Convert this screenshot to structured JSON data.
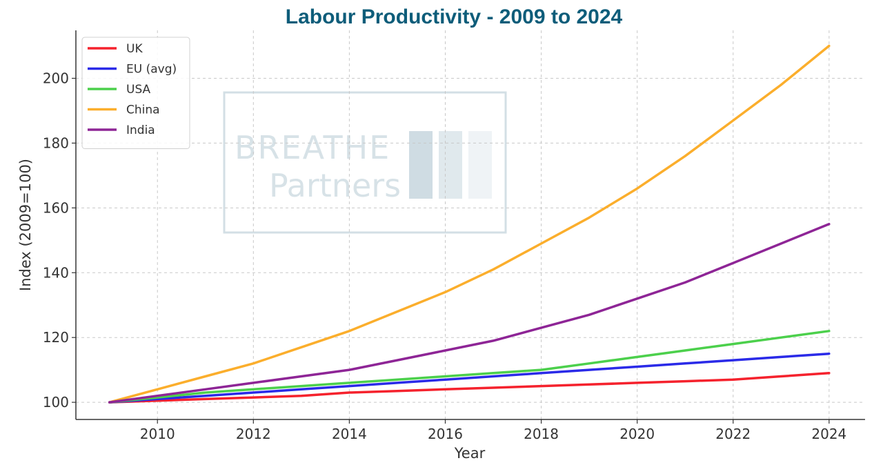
{
  "chart_data": {
    "type": "line",
    "title": "Labour Productivity - 2009 to 2024",
    "xlabel": "Year",
    "ylabel": "Index (2009=100)",
    "x": [
      2009,
      2010,
      2011,
      2012,
      2013,
      2014,
      2015,
      2016,
      2017,
      2018,
      2019,
      2020,
      2021,
      2022,
      2023,
      2024
    ],
    "xlim": [
      2008.3,
      2024.75
    ],
    "ylim": [
      94.7,
      214.8
    ],
    "xticks": [
      2010,
      2012,
      2014,
      2016,
      2018,
      2020,
      2022,
      2024
    ],
    "yticks": [
      100,
      120,
      140,
      160,
      180,
      200
    ],
    "grid": true,
    "legend_position": "top-left",
    "series": [
      {
        "name": "UK",
        "color": "#f5222d",
        "values": [
          100,
          100.5,
          101,
          101.5,
          102,
          103,
          103.5,
          104,
          104.5,
          105,
          105.5,
          106,
          106.5,
          107,
          108,
          109
        ]
      },
      {
        "name": "EU (avg)",
        "color": "#2a2ae8",
        "values": [
          100,
          101,
          102,
          103,
          104,
          105,
          106,
          107,
          108,
          109,
          110,
          111,
          112,
          113,
          114,
          115
        ]
      },
      {
        "name": "USA",
        "color": "#4cd04c",
        "values": [
          100,
          101.5,
          103,
          104,
          105,
          106,
          107,
          108,
          109,
          110,
          112,
          114,
          116,
          118,
          120,
          122
        ]
      },
      {
        "name": "China",
        "color": "#fbae2c",
        "values": [
          100,
          104,
          108,
          112,
          117,
          122,
          128,
          134,
          141,
          149,
          157,
          166,
          176,
          187,
          198,
          210
        ]
      },
      {
        "name": "India",
        "color": "#8e2596",
        "values": [
          100,
          102,
          104,
          106,
          108,
          110,
          113,
          116,
          119,
          123,
          127,
          132,
          137,
          143,
          149,
          155
        ]
      }
    ]
  },
  "style": {
    "title_color": "#0e5d7a",
    "axis_color": "#333333",
    "grid_color": "#c8c8c8",
    "watermark_color": "#a7bfcc"
  },
  "watermark": {
    "line1": "BREATHE",
    "line2": "Partners"
  }
}
